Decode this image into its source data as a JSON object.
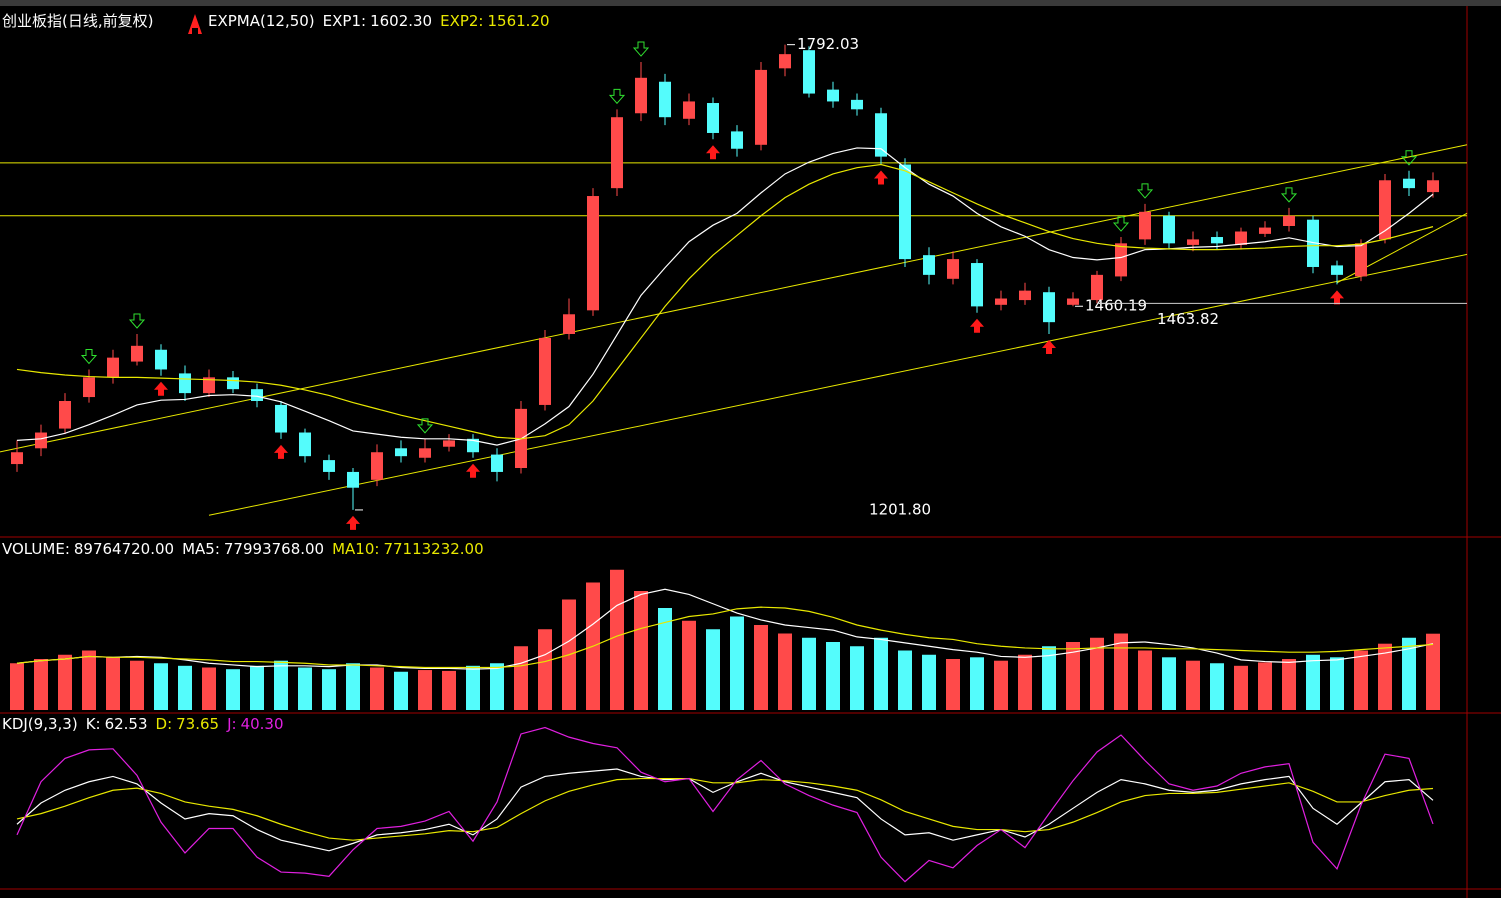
{
  "chart_data": [
    {
      "type": "candlestick",
      "title": "创业板指(日线,前复权)",
      "indicator": "EXPMA(12,50)",
      "up_color": "#ff4a4a",
      "down_color": "#54fcfc",
      "ylim": [
        1170,
        1836
      ],
      "open": [
        1260,
        1280,
        1305,
        1345,
        1370,
        1390,
        1405,
        1375,
        1350,
        1370,
        1355,
        1335,
        1300,
        1265,
        1250,
        1240,
        1280,
        1268,
        1282,
        1292,
        1272,
        1255,
        1335,
        1425,
        1455,
        1610,
        1705,
        1745,
        1698,
        1718,
        1682,
        1665,
        1762,
        1785,
        1735,
        1722,
        1705,
        1640,
        1525,
        1495,
        1515,
        1462,
        1468,
        1478,
        1462,
        1468,
        1498,
        1545,
        1575,
        1538,
        1548,
        1538,
        1552,
        1562,
        1570,
        1512,
        1498,
        1545,
        1622,
        1605
      ],
      "high": [
        1290,
        1310,
        1350,
        1380,
        1405,
        1425,
        1412,
        1385,
        1380,
        1378,
        1362,
        1340,
        1305,
        1272,
        1255,
        1285,
        1290,
        1292,
        1298,
        1298,
        1280,
        1340,
        1430,
        1470,
        1610,
        1710,
        1770,
        1755,
        1730,
        1725,
        1690,
        1770,
        1792.03,
        1790,
        1745,
        1730,
        1712,
        1648,
        1535,
        1530,
        1520,
        1480,
        1490,
        1485,
        1478,
        1505,
        1548,
        1590,
        1580,
        1555,
        1555,
        1560,
        1568,
        1585,
        1575,
        1518,
        1545,
        1628,
        1632,
        1630
      ],
      "low": [
        1250,
        1270,
        1298,
        1338,
        1362,
        1385,
        1372,
        1340,
        1345,
        1350,
        1332,
        1292,
        1262,
        1240,
        1201.8,
        1232,
        1262,
        1262,
        1276,
        1268,
        1238,
        1248,
        1328,
        1418,
        1448,
        1600,
        1695,
        1690,
        1690,
        1672,
        1650,
        1658,
        1752,
        1725,
        1712,
        1702,
        1640,
        1510,
        1488,
        1488,
        1452,
        1455,
        1462,
        1425,
        1460.19,
        1463.82,
        1492,
        1538,
        1532,
        1530,
        1532,
        1532,
        1548,
        1555,
        1502,
        1488,
        1492,
        1540,
        1600,
        1598
      ],
      "close": [
        1275,
        1300,
        1340,
        1370,
        1395,
        1410,
        1380,
        1350,
        1370,
        1355,
        1340,
        1300,
        1270,
        1250,
        1230,
        1275,
        1270,
        1280,
        1290,
        1275,
        1250,
        1330,
        1420,
        1450,
        1600,
        1700,
        1750,
        1700,
        1720,
        1680,
        1660,
        1760,
        1780,
        1730,
        1720,
        1710,
        1650,
        1520,
        1500,
        1520,
        1460,
        1470,
        1480,
        1440,
        1470,
        1500,
        1540,
        1580,
        1540,
        1545,
        1540,
        1555,
        1560,
        1575,
        1510,
        1500,
        1540,
        1620,
        1610,
        1620
      ],
      "series": [
        {
          "name": "EXP1:",
          "color": "#ffffff",
          "last_label": "1602.30",
          "values": [
            1290,
            1292,
            1299,
            1310,
            1322,
            1335,
            1341,
            1342,
            1347,
            1348,
            1346,
            1339,
            1327,
            1315,
            1302,
            1298,
            1294,
            1292,
            1292,
            1290,
            1284,
            1292,
            1311,
            1333,
            1374,
            1424,
            1474,
            1509,
            1542,
            1563,
            1578,
            1604,
            1628,
            1643,
            1654,
            1661,
            1660,
            1636,
            1615,
            1600,
            1578,
            1561,
            1549,
            1532,
            1522,
            1519,
            1522,
            1532,
            1533,
            1535,
            1536,
            1539,
            1542,
            1547,
            1541,
            1536,
            1537,
            1556,
            1578,
            1602.3
          ]
        },
        {
          "name": "EXP2:",
          "color": "#e8e800",
          "last_label": "1561.20",
          "values": [
            1380,
            1376,
            1373,
            1371,
            1370,
            1370,
            1369,
            1368,
            1367,
            1366,
            1364,
            1360,
            1354,
            1347,
            1338,
            1330,
            1322,
            1315,
            1308,
            1301,
            1294,
            1292,
            1296,
            1310,
            1340,
            1380,
            1420,
            1460,
            1495,
            1525,
            1550,
            1575,
            1598,
            1615,
            1628,
            1636,
            1640,
            1632,
            1618,
            1604,
            1590,
            1577,
            1566,
            1555,
            1546,
            1540,
            1536,
            1534,
            1533,
            1532,
            1532,
            1533,
            1534,
            1536,
            1537,
            1537,
            1539,
            1545,
            1553,
            1561.2
          ]
        }
      ],
      "hlines": [
        1642,
        1575
      ],
      "line_color": "#e8e800",
      "trend_lines": [
        {
          "from": {
            "index": 0,
            "price": 1280
          },
          "to": {
            "index": 59,
            "price": 1656
          }
        },
        {
          "from": {
            "index": 8,
            "price": 1195
          },
          "to": {
            "index": 59,
            "price": 1517
          }
        },
        {
          "from": {
            "index": 55,
            "price": 1490
          },
          "to": {
            "index": 59,
            "price": 1555
          }
        }
      ],
      "annotations": [
        {
          "value": 1792.03,
          "label": "1792.03"
        },
        {
          "value": 1201.8,
          "label": "1201.80"
        },
        {
          "value": 1460.19,
          "label": "1460.19"
        },
        {
          "value": 1463.82,
          "label": "1463.82",
          "extend": true
        }
      ],
      "buy_signals": [
        6,
        11,
        14,
        19,
        29,
        36,
        40,
        43,
        55
      ],
      "sell_signals": [
        3,
        5,
        17,
        25,
        26,
        46,
        47,
        53,
        58
      ]
    },
    {
      "type": "volume",
      "name": "VOLUME:",
      "last_label": "89764720.00",
      "ylim": [
        0,
        200000000
      ],
      "values": [
        55000000,
        60000000,
        65000000,
        70000000,
        62000000,
        58000000,
        55000000,
        52000000,
        50000000,
        48000000,
        52000000,
        58000000,
        50000000,
        48000000,
        55000000,
        50000000,
        45000000,
        47000000,
        46000000,
        52000000,
        55000000,
        75000000,
        95000000,
        130000000,
        150000000,
        165000000,
        140000000,
        120000000,
        105000000,
        95000000,
        110000000,
        100000000,
        90000000,
        85000000,
        80000000,
        75000000,
        85000000,
        70000000,
        65000000,
        60000000,
        62000000,
        58000000,
        65000000,
        75000000,
        80000000,
        85000000,
        90000000,
        70000000,
        62000000,
        58000000,
        55000000,
        52000000,
        56000000,
        60000000,
        65000000,
        62000000,
        70000000,
        78000000,
        85000000,
        89764720
      ],
      "series": [
        {
          "name": "MA5:",
          "color": "#ffffff",
          "last_label": "77993768.00",
          "values": [
            55000000,
            58000000,
            60000000,
            63000000,
            62000000,
            63000000,
            62000000,
            59000000,
            55000000,
            53000000,
            51000000,
            52000000,
            52000000,
            51000000,
            53000000,
            53000000,
            50000000,
            49000000,
            49000000,
            48000000,
            49000000,
            55000000,
            65000000,
            81000000,
            101000000,
            123000000,
            136000000,
            142000000,
            136000000,
            125000000,
            114000000,
            106000000,
            100000000,
            97000000,
            94000000,
            86000000,
            83000000,
            79000000,
            75000000,
            71000000,
            68000000,
            63000000,
            62000000,
            64000000,
            68000000,
            73000000,
            79000000,
            80000000,
            77000000,
            73000000,
            67000000,
            59000000,
            57000000,
            56000000,
            58000000,
            59000000,
            63000000,
            67000000,
            72000000,
            77993768
          ]
        },
        {
          "name": "MA10:",
          "color": "#e8e800",
          "last_label": "77113232.00",
          "values": [
            55000000,
            58000000,
            60000000,
            63000000,
            62000000,
            62000000,
            61000000,
            60000000,
            59000000,
            57000000,
            57000000,
            56000000,
            55000000,
            53000000,
            53000000,
            52000000,
            51000000,
            50000000,
            50000000,
            50000000,
            50000000,
            52000000,
            57000000,
            65000000,
            75000000,
            87000000,
            96000000,
            103000000,
            110000000,
            113000000,
            119000000,
            121000000,
            120000000,
            116000000,
            109000000,
            100000000,
            94000000,
            89000000,
            85000000,
            83000000,
            78000000,
            75000000,
            73000000,
            72000000,
            72000000,
            73000000,
            73000000,
            73000000,
            72000000,
            72000000,
            71000000,
            70000000,
            69000000,
            68000000,
            68000000,
            69000000,
            71000000,
            73000000,
            75000000,
            77113232
          ]
        }
      ]
    },
    {
      "type": "line",
      "title": "KDJ(9,3,3)",
      "ylim": [
        -20,
        140
      ],
      "series": [
        {
          "name": "K:",
          "color": "#ffffff",
          "last_label": "62.53",
          "values": [
            40,
            60,
            72,
            80,
            85,
            78,
            60,
            45,
            50,
            48,
            35,
            25,
            20,
            15,
            22,
            30,
            32,
            35,
            40,
            30,
            45,
            75,
            85,
            88,
            90,
            92,
            85,
            82,
            83,
            70,
            80,
            88,
            80,
            75,
            70,
            65,
            45,
            30,
            32,
            25,
            30,
            35,
            28,
            40,
            55,
            70,
            82,
            78,
            72,
            70,
            72,
            78,
            82,
            85,
            55,
            40,
            60,
            80,
            82,
            62.53
          ]
        },
        {
          "name": "D:",
          "color": "#e8e800",
          "last_label": "73.65",
          "values": [
            45,
            50,
            57,
            65,
            72,
            74,
            69,
            61,
            57,
            54,
            48,
            40,
            33,
            27,
            25,
            27,
            29,
            31,
            34,
            33,
            37,
            50,
            62,
            71,
            77,
            82,
            83,
            83,
            83,
            79,
            79,
            82,
            81,
            79,
            76,
            72,
            63,
            52,
            45,
            38,
            35,
            35,
            33,
            35,
            42,
            51,
            61,
            67,
            69,
            69,
            70,
            73,
            76,
            79,
            71,
            61,
            61,
            67,
            72,
            73.65
          ]
        },
        {
          "name": "J:",
          "color": "#e020e0",
          "last_label": "40.30",
          "values": [
            30,
            80,
            102,
            110,
            111,
            86,
            42,
            13,
            36,
            36,
            9,
            -5,
            -6,
            -9,
            16,
            36,
            38,
            43,
            52,
            24,
            61,
            125,
            131,
            122,
            116,
            112,
            89,
            80,
            83,
            52,
            82,
            100,
            78,
            67,
            58,
            51,
            9,
            -14,
            6,
            -1,
            20,
            35,
            18,
            50,
            81,
            108,
            124,
            100,
            78,
            72,
            76,
            88,
            94,
            97,
            23,
            -2,
            58,
            106,
            102,
            40.3
          ]
        }
      ]
    }
  ]
}
